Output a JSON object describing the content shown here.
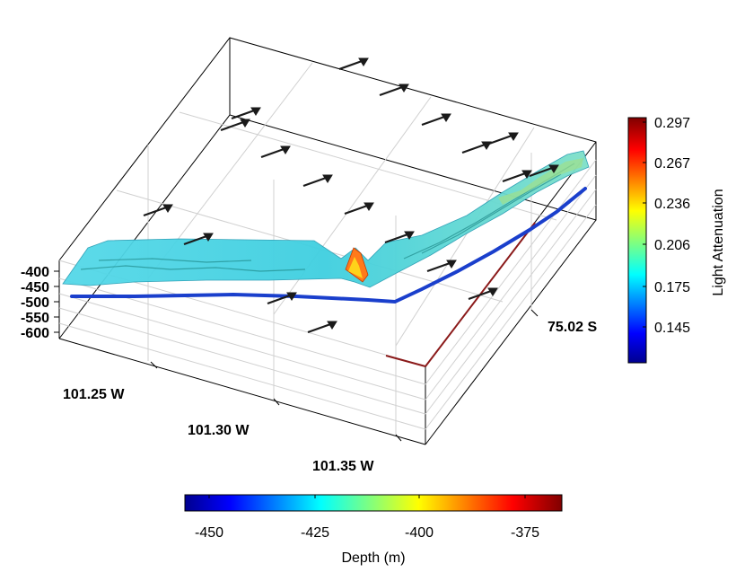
{
  "chart_data": [
    {
      "type": "3d-surface",
      "title": "",
      "z_axis": {
        "label": "",
        "ticks": [
          "-400",
          "-450",
          "-500",
          "-550",
          "-600"
        ],
        "range": [
          -600,
          -400
        ]
      },
      "x_axis": {
        "label": "",
        "ticks": [
          "101.25 W",
          "101.30 W",
          "101.35 W"
        ]
      },
      "y_axis": {
        "label": "",
        "ticks": [
          "75.02 S"
        ]
      },
      "grid": true,
      "arrow_field": {
        "count": 22,
        "color": "#1a1a1a",
        "meaning": "current vectors"
      }
    },
    {
      "type": "colorbar",
      "label": "Light Attenuation",
      "orientation": "vertical",
      "placement": "right",
      "ticks": [
        "0.297",
        "0.267",
        "0.236",
        "0.206",
        "0.175",
        "0.145"
      ],
      "colormap": "jet"
    },
    {
      "type": "colorbar",
      "label": "Depth (m)",
      "orientation": "horizontal",
      "placement": "bottom",
      "ticks": [
        "-450",
        "-425",
        "-400",
        "-375"
      ],
      "colormap": "jet"
    }
  ],
  "colors": {
    "axis": "#000000",
    "grid": "#cccccc",
    "track": "#1a3fcc",
    "x_axis_edge": "#8b1a1a",
    "jet": [
      "#00008f",
      "#0000ff",
      "#0080ff",
      "#00ffff",
      "#80ff80",
      "#ffff00",
      "#ff8000",
      "#ff0000",
      "#800000"
    ]
  }
}
